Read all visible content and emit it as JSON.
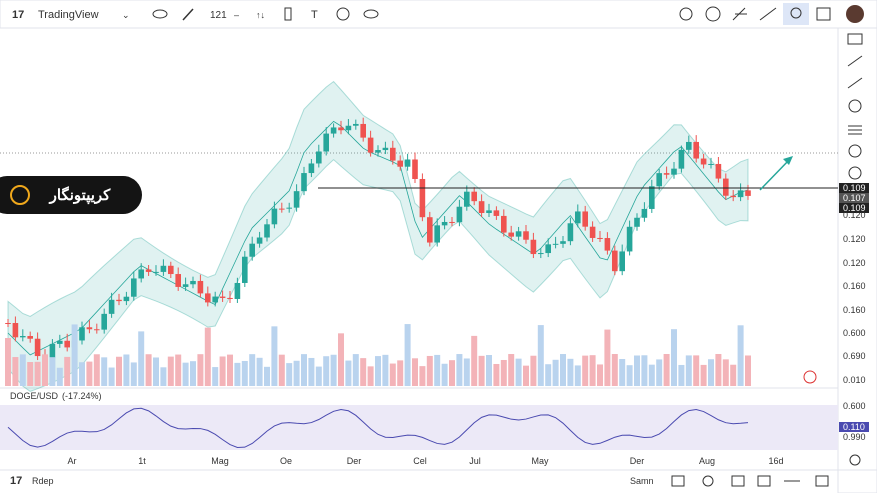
{
  "toolbar": {
    "brand": "TradingView",
    "interval": "121"
  },
  "legend": {
    "symbol": "DOGE/USD",
    "change": "(-17.24%)"
  },
  "logo": {
    "text": "کریپتونگار"
  },
  "price_axis": [
    "0.109",
    "0.107",
    "0.109",
    "0.120",
    "0.120",
    "0.120",
    "0.160",
    "0.160",
    "0.600",
    "0.690",
    "0.010"
  ],
  "indicator_axis": [
    "0.600",
    "0.110",
    "0.990"
  ],
  "time_axis": [
    "Ar",
    "1t",
    "Mag",
    "Oe",
    "Der",
    "Cel",
    "Jul",
    "May",
    "Der",
    "Aug",
    "16d"
  ],
  "bottom_bar": {
    "left": "Rdep",
    "right": "Samn"
  }
}
